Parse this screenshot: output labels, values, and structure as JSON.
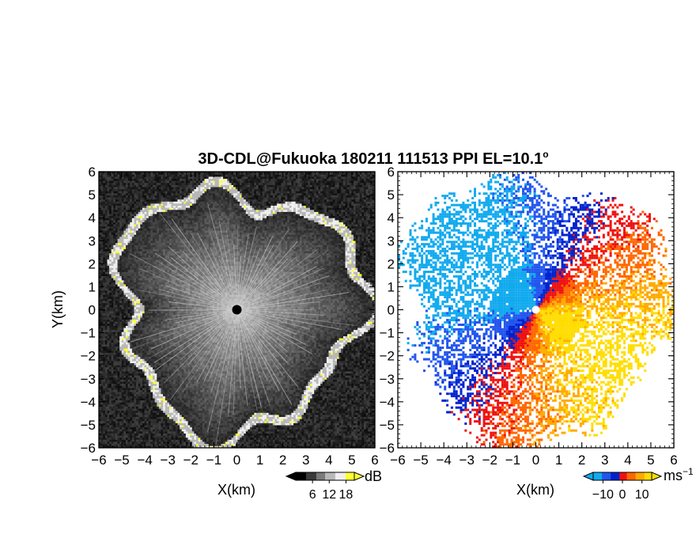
{
  "chart_data": {
    "title": "3D-CDL@Fukuoka 180211 111513 PPI EL=10.1",
    "title_degree_mark": "o",
    "type": "heatmap",
    "xlabel": "X(km)",
    "ylabel": "Y(km)",
    "xlim": [
      -6,
      6
    ],
    "ylim": [
      -6,
      6
    ],
    "xticks": [
      -6,
      -5,
      -4,
      -3,
      -2,
      -1,
      0,
      1,
      2,
      3,
      4,
      5,
      6
    ],
    "yticks": [
      -6,
      -5,
      -4,
      -3,
      -2,
      -1,
      0,
      1,
      2,
      3,
      4,
      5,
      6
    ],
    "panels": [
      {
        "quantity": "SNR",
        "colorbar_unit": "dB",
        "colorbar_ticks": [
          6,
          12,
          18
        ],
        "colormap": [
          "#000000",
          "#3a3a3a",
          "#7a7a7a",
          "#b8b8b8",
          "#f0f0f0",
          "#ffff33"
        ],
        "center_marker_color": "#000000"
      },
      {
        "quantity": "Doppler velocity",
        "colorbar_unit": "ms",
        "colorbar_unit_exponent": "−1",
        "colorbar_ticks": [
          -10,
          0,
          10
        ],
        "colormap": [
          "#11aaee",
          "#2255ee",
          "#0022cc",
          "#ee1111",
          "#ff6600",
          "#ffaa00",
          "#ffdd00"
        ],
        "center_marker_color": "#ffffff"
      }
    ]
  }
}
